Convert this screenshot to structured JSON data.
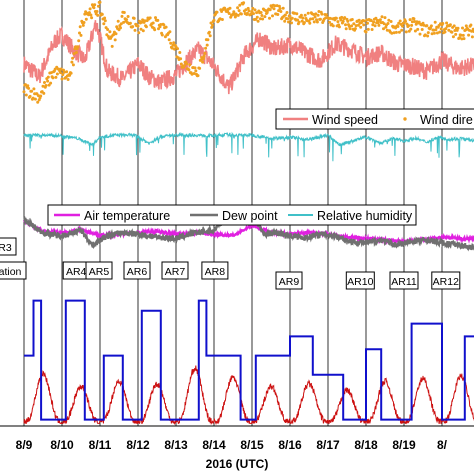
{
  "chart_data": {
    "type": "line",
    "xlabel": "2016 (UTC)",
    "x_ticks": [
      "8/9",
      "8/10",
      "8/11",
      "8/12",
      "8/13",
      "8/14",
      "8/15",
      "8/16",
      "8/17",
      "8/18",
      "8/19",
      "8/20"
    ],
    "x_ticks_display": [
      "8/9",
      "8/10",
      "8/11",
      "8/12",
      "8/13",
      "8/14",
      "8/15",
      "8/16",
      "8/17",
      "8/18",
      "8/19",
      "8/"
    ],
    "xlim": [
      0,
      12.1
    ],
    "panels": [
      {
        "name": "wind",
        "legend": [
          "Wind speed",
          "Wind dire"
        ],
        "series": [
          {
            "name": "Wind speed",
            "color": "#f08080",
            "x": [
              0,
              0.4,
              0.8,
              1.0,
              1.3,
              1.6,
              1.9,
              2.2,
              2.6,
              3.0,
              3.3,
              3.6,
              4.0,
              4.3,
              4.6,
              5.0,
              5.4,
              5.8,
              6.2,
              6.6,
              7.0,
              7.4,
              7.8,
              8.2,
              8.6,
              9.0,
              9.4,
              9.8,
              10.2,
              10.6,
              11.0,
              11.4,
              11.8,
              12.1
            ],
            "y": [
              0.42,
              0.3,
              0.62,
              0.68,
              0.55,
              0.45,
              0.8,
              0.35,
              0.28,
              0.42,
              0.3,
              0.25,
              0.32,
              0.45,
              0.55,
              0.4,
              0.2,
              0.5,
              0.65,
              0.55,
              0.6,
              0.52,
              0.45,
              0.6,
              0.55,
              0.48,
              0.52,
              0.42,
              0.4,
              0.35,
              0.45,
              0.38,
              0.4,
              0.42
            ]
          },
          {
            "name": "Wind dire",
            "color": "#f0a020",
            "x": [
              0,
              0.4,
              0.8,
              1.2,
              1.6,
              2.0,
              2.3,
              2.6,
              3.0,
              3.4,
              3.8,
              4.2,
              4.6,
              5.0,
              5.4,
              5.8,
              6.2,
              6.6,
              7.0,
              7.4,
              7.8,
              8.2,
              8.6,
              9.0,
              9.4,
              9.8,
              10.2,
              10.6,
              11.0,
              11.4,
              11.8,
              12.1
            ],
            "y": [
              0.2,
              0.12,
              0.35,
              0.3,
              0.88,
              0.92,
              0.62,
              0.85,
              0.75,
              0.8,
              0.68,
              0.42,
              0.35,
              0.85,
              0.88,
              0.92,
              0.86,
              0.9,
              0.85,
              0.82,
              0.84,
              0.8,
              0.78,
              0.76,
              0.8,
              0.74,
              0.78,
              0.72,
              0.76,
              0.7,
              0.72,
              0.75
            ]
          }
        ]
      },
      {
        "name": "humidity",
        "series": [
          {
            "name": "Relative humidity",
            "color": "#40c0c8",
            "x": [
              0,
              0.5,
              1.0,
              1.4,
              1.8,
              2.0,
              2.4,
              2.9,
              3.3,
              3.6,
              4.0,
              4.5,
              5.0,
              5.3,
              5.6,
              6.0,
              6.5,
              7.0,
              7.5,
              8.0,
              8.3,
              8.6,
              9.0,
              9.4,
              9.7,
              10.0,
              10.3,
              10.6,
              10.9,
              11.2,
              11.5,
              11.8,
              12.1
            ],
            "y": [
              0.95,
              0.95,
              0.94,
              0.9,
              0.8,
              0.92,
              0.95,
              0.95,
              0.82,
              0.93,
              0.95,
              0.95,
              0.94,
              0.96,
              0.95,
              0.95,
              0.9,
              0.92,
              0.88,
              0.95,
              0.8,
              0.85,
              0.92,
              0.82,
              0.9,
              0.86,
              0.9,
              0.84,
              0.92,
              0.88,
              0.9,
              0.86,
              0.9
            ]
          }
        ]
      },
      {
        "name": "temperature",
        "legend": [
          "Air temperature",
          "Dew point",
          "Relative humidity"
        ],
        "series": [
          {
            "name": "Air temperature",
            "color": "#e020e0",
            "x": [
              0,
              0.5,
              1.0,
              1.5,
              2.0,
              2.5,
              3.0,
              3.5,
              4.0,
              4.5,
              5.0,
              5.5,
              6.0,
              6.5,
              7.0,
              7.5,
              8.0,
              8.5,
              9.0,
              9.5,
              10.0,
              10.5,
              11.0,
              11.5,
              12.1
            ],
            "y": [
              0.78,
              0.64,
              0.62,
              0.66,
              0.58,
              0.6,
              0.62,
              0.64,
              0.6,
              0.62,
              0.6,
              0.58,
              0.72,
              0.62,
              0.6,
              0.62,
              0.6,
              0.56,
              0.54,
              0.52,
              0.5,
              0.52,
              0.56,
              0.54,
              0.54
            ]
          },
          {
            "name": "Dew point",
            "color": "#707070",
            "x": [
              0,
              0.5,
              0.9,
              1.2,
              1.5,
              1.8,
              2.1,
              2.5,
              3.0,
              3.5,
              4.0,
              4.5,
              5.0,
              5.4,
              5.7,
              6.0,
              6.3,
              6.6,
              7.0,
              7.4,
              7.8,
              8.2,
              8.6,
              9.0,
              9.4,
              9.8,
              10.2,
              10.6,
              11.0,
              11.4,
              11.8,
              12.1
            ],
            "y": [
              0.8,
              0.62,
              0.58,
              0.6,
              0.66,
              0.45,
              0.55,
              0.62,
              0.6,
              0.56,
              0.54,
              0.62,
              0.65,
              0.88,
              0.78,
              0.92,
              0.6,
              0.62,
              0.58,
              0.55,
              0.6,
              0.58,
              0.5,
              0.48,
              0.52,
              0.45,
              0.5,
              0.52,
              0.48,
              0.46,
              0.42,
              0.45
            ]
          }
        ]
      },
      {
        "name": "events",
        "series": [
          {
            "name": "step",
            "color": "#1010cc",
            "x": [
              0,
              0.25,
              0.25,
              0.45,
              0.45,
              1.1,
              1.1,
              1.6,
              1.6,
              2.1,
              2.1,
              2.6,
              2.6,
              3.1,
              3.1,
              3.6,
              3.6,
              4.6,
              4.6,
              4.8,
              4.8,
              5.7,
              5.7,
              6.1,
              6.1,
              7.0,
              7.0,
              7.6,
              7.6,
              8.4,
              8.4,
              9.0,
              9.0,
              9.4,
              9.4,
              10.2,
              10.2,
              11.0,
              11.0,
              11.6,
              11.6,
              12.1
            ],
            "y": [
              0.55,
              0.55,
              0.98,
              0.98,
              0.05,
              0.05,
              0.98,
              0.98,
              0.05,
              0.05,
              0.55,
              0.55,
              0.05,
              0.05,
              0.9,
              0.9,
              0.05,
              0.05,
              0.98,
              0.98,
              0.55,
              0.55,
              0.05,
              0.05,
              0.55,
              0.55,
              0.7,
              0.7,
              0.4,
              0.4,
              0.05,
              0.05,
              0.6,
              0.6,
              0.05,
              0.05,
              0.8,
              0.8,
              0.05,
              0.05,
              0.7,
              0.7
            ]
          },
          {
            "name": "diurnal",
            "color": "#cc1010",
            "peaks": [
              0.5,
              1.5,
              2.5,
              3.5,
              4.5,
              5.5,
              6.5,
              7.5,
              8.5,
              9.5,
              10.5,
              11.5
            ],
            "peak_height": [
              0.38,
              0.28,
              0.32,
              0.3,
              0.42,
              0.35,
              0.28,
              0.3,
              0.25,
              0.32,
              0.34,
              0.36
            ]
          }
        ]
      }
    ],
    "annotations": [
      "R3",
      "ation",
      "AR4",
      "AR5",
      "AR6",
      "AR7",
      "AR8",
      "AR9",
      "AR10",
      "AR11",
      "AR12"
    ]
  },
  "legend1": {
    "item1": "Wind speed",
    "item2": "Wind dire"
  },
  "legend2": {
    "item1": "Air temperature",
    "item2": "Dew point",
    "item3": "Relative humidity"
  },
  "colors": {
    "wind_speed": "#f08080",
    "wind_direction": "#f0a020",
    "humidity": "#40c0c8",
    "air_temp": "#e020e0",
    "dew_point": "#707070",
    "blue_step": "#1010cc",
    "red_line": "#cc1010",
    "grid": "#000000"
  }
}
